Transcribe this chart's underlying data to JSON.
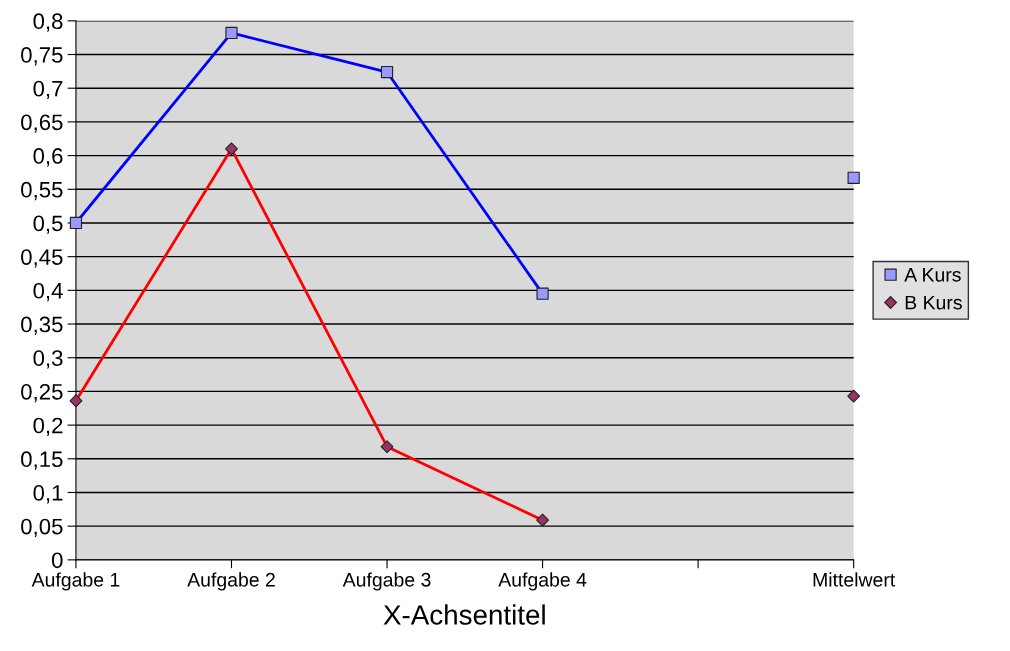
{
  "chart_data": {
    "type": "line",
    "xlabel": "X-Achsentitel",
    "categories": [
      "Aufgabe 1",
      "Aufgabe 2",
      "Aufgabe 3",
      "Aufgabe 4",
      null,
      "Mittelwert"
    ],
    "series": [
      {
        "name": "A Kurs",
        "color": "#0000ff",
        "colors": [
          "#9999ff",
          "#9999ff",
          "#9999ff",
          "#9999ff",
          "#9999ff",
          "#9999ff"
        ],
        "marker": "square",
        "values": [
          0.5,
          0.782,
          0.724,
          0.395,
          null,
          0.567
        ]
      },
      {
        "name": "B Kurs",
        "color": "#ff0000",
        "colors": [
          "#993366",
          "#993366",
          "#993366",
          "#993366",
          "#993366",
          "#993366"
        ],
        "marker": "diamond",
        "values": [
          0.236,
          0.61,
          0.168,
          0.059,
          null,
          0.243
        ]
      }
    ],
    "ylim": [
      0,
      0.8
    ],
    "yticks": [
      0,
      {
        "value": 0.05,
        "label": "0,05"
      },
      {
        "value": 0.1,
        "label": "0,1"
      },
      {
        "value": 0.15,
        "label": "0,15"
      },
      {
        "value": 0.2,
        "label": "0,2"
      },
      {
        "value": 0.25,
        "label": "0,25"
      },
      {
        "value": 0.3,
        "label": "0,3"
      },
      {
        "value": 0.35,
        "label": "0,35"
      },
      {
        "value": 0.4,
        "label": "0,4"
      },
      {
        "value": 0.45,
        "label": "0,45"
      },
      {
        "value": 0.5,
        "label": "0,5"
      },
      {
        "value": 0.55,
        "label": "0,55"
      },
      {
        "value": 0.6,
        "label": "0,6"
      },
      {
        "value": 0.65,
        "label": "0,65"
      },
      {
        "value": 0.7,
        "label": "0,7"
      },
      {
        "value": 0.75,
        "label": "0,75"
      },
      {
        "value": 0.8,
        "label": "0,8"
      }
    ],
    "grid": "y",
    "legend": "right"
  }
}
